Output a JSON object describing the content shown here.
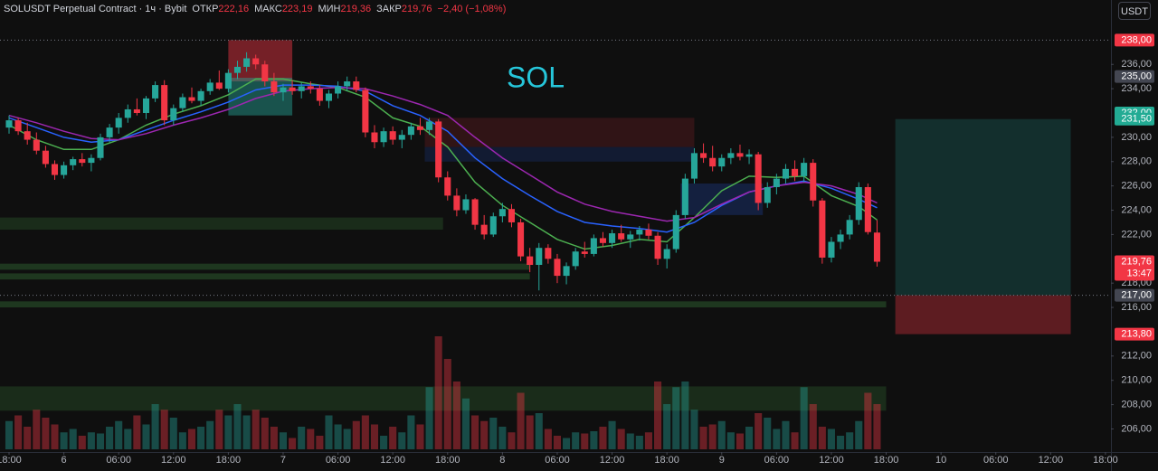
{
  "chart_data": {
    "type": "candlestick",
    "symbol": "SOLUSDT Perpetual Contract · 1ч · Bybit",
    "ohlc_fields": [
      {
        "label": "ОТКР",
        "value": "222,16"
      },
      {
        "label": "МАКС",
        "value": "223,19"
      },
      {
        "label": "МИН",
        "value": "219,36"
      },
      {
        "label": "ЗАКР",
        "value": "219,76"
      }
    ],
    "change": "−2,40 (−1,08%)",
    "currency": "USDT",
    "annotation": "SOL",
    "up_color": "#26a69a",
    "down_color": "#f23645",
    "xlim": [
      -0.99,
      120.6
    ],
    "ylim": [
      204.1,
      241.3
    ],
    "xticks": [
      {
        "value": 0,
        "label": "18:00"
      },
      6,
      {
        "value": 12,
        "label": "06:00"
      },
      {
        "value": 18,
        "label": "12:00"
      },
      {
        "value": 24,
        "label": "18:00"
      },
      {
        "value": 30,
        "label": "7"
      },
      {
        "value": 36,
        "label": "06:00"
      },
      {
        "value": 42,
        "label": "12:00"
      },
      {
        "value": 48,
        "label": "18:00"
      },
      {
        "value": 54,
        "label": "8"
      },
      {
        "value": 60,
        "label": "06:00"
      },
      {
        "value": 66,
        "label": "12:00"
      },
      {
        "value": 72,
        "label": "18:00"
      },
      {
        "value": 78,
        "label": "9"
      },
      {
        "value": 84,
        "label": "06:00"
      },
      {
        "value": 90,
        "label": "12:00"
      },
      {
        "value": 96,
        "label": "18:00"
      },
      {
        "value": 102,
        "label": "10"
      },
      {
        "value": 108,
        "label": "06:00"
      },
      {
        "value": 114,
        "label": "12:00"
      },
      {
        "value": 120,
        "label": "18:00"
      }
    ],
    "yticks": [
      {
        "value": 206,
        "label": "206,00"
      },
      {
        "value": 208,
        "label": "208,00"
      },
      {
        "value": 210,
        "label": "210,00"
      },
      {
        "value": 212,
        "label": "212,00"
      },
      {
        "value": 216,
        "label": "216,00"
      },
      {
        "value": 218,
        "label": "218,00"
      },
      {
        "value": 222,
        "label": "222,00"
      },
      {
        "value": 224,
        "label": "224,00"
      },
      {
        "value": 226,
        "label": "226,00"
      },
      {
        "value": 228,
        "label": "228,00"
      },
      {
        "value": 230,
        "label": "230,00"
      },
      {
        "value": 234,
        "label": "234,00"
      },
      {
        "value": 236,
        "label": "236,00"
      }
    ],
    "price_badges": [
      {
        "value": 238,
        "label": "238,00",
        "color": "#f23645"
      },
      {
        "value": 235,
        "label": "235,00",
        "color": "#434651"
      },
      {
        "value": 232,
        "label": "232,00",
        "color": "#22ab94"
      },
      {
        "value": 231.5,
        "label": "231,50",
        "color": "#22ab94"
      },
      {
        "value": 219.76,
        "label": "219,76",
        "sublabel": "13:47",
        "color": "#f23645"
      },
      {
        "value": 217,
        "label": "217,00",
        "color": "#434651"
      },
      {
        "value": 213.8,
        "label": "213,80",
        "color": "#f23645"
      }
    ],
    "dotted_lines": [
      238,
      217
    ],
    "x": [
      0,
      1,
      2,
      3,
      4,
      5,
      6,
      7,
      8,
      9,
      10,
      11,
      12,
      13,
      14,
      15,
      16,
      17,
      18,
      19,
      20,
      21,
      22,
      23,
      24,
      25,
      26,
      27,
      28,
      29,
      30,
      31,
      32,
      33,
      34,
      35,
      36,
      37,
      38,
      39,
      40,
      41,
      42,
      43,
      44,
      45,
      46,
      47,
      48,
      49,
      50,
      51,
      52,
      53,
      54,
      55,
      56,
      57,
      58,
      59,
      60,
      61,
      62,
      63,
      64,
      65,
      66,
      67,
      68,
      69,
      70,
      71,
      72,
      73,
      74,
      75,
      76,
      77,
      78,
      79,
      80,
      81,
      82,
      83,
      84,
      85,
      86,
      87,
      88,
      89,
      90,
      91,
      92,
      93,
      94,
      95
    ],
    "candles": [
      [
        230.8,
        231.8,
        230.3,
        231.4
      ],
      [
        231.4,
        231.6,
        230.2,
        230.5
      ],
      [
        230.5,
        231.2,
        229.4,
        229.8
      ],
      [
        229.8,
        230.4,
        228.6,
        228.9
      ],
      [
        228.9,
        229.3,
        227.5,
        227.8
      ],
      [
        227.8,
        228.1,
        226.5,
        226.9
      ],
      [
        226.9,
        228.0,
        226.6,
        227.7
      ],
      [
        227.7,
        228.4,
        227.3,
        228.2
      ],
      [
        228.2,
        228.7,
        227.6,
        227.9
      ],
      [
        227.9,
        228.6,
        227.2,
        228.3
      ],
      [
        228.3,
        230.3,
        228.1,
        230.0
      ],
      [
        230.0,
        231.1,
        229.6,
        230.8
      ],
      [
        230.8,
        232.0,
        230.3,
        231.6
      ],
      [
        231.6,
        232.7,
        231.2,
        232.3
      ],
      [
        232.3,
        233.2,
        231.8,
        232.0
      ],
      [
        232.0,
        233.4,
        231.5,
        233.2
      ],
      [
        233.2,
        234.6,
        232.9,
        234.3
      ],
      [
        234.3,
        234.7,
        231.0,
        231.4
      ],
      [
        231.4,
        232.7,
        231.0,
        232.4
      ],
      [
        232.4,
        233.6,
        232.1,
        233.3
      ],
      [
        233.3,
        234.1,
        232.8,
        233.0
      ],
      [
        233.0,
        234.0,
        232.6,
        233.8
      ],
      [
        233.8,
        234.8,
        233.5,
        234.5
      ],
      [
        234.5,
        235.5,
        233.9,
        234.0
      ],
      [
        234.0,
        235.6,
        233.7,
        235.3
      ],
      [
        235.3,
        236.3,
        234.8,
        235.8
      ],
      [
        235.8,
        237.0,
        235.4,
        236.5
      ],
      [
        236.5,
        236.8,
        235.6,
        236.0
      ],
      [
        236.0,
        236.3,
        234.2,
        234.6
      ],
      [
        234.6,
        235.3,
        233.4,
        233.7
      ],
      [
        233.7,
        234.4,
        233.0,
        234.1
      ],
      [
        234.1,
        234.7,
        233.5,
        233.8
      ],
      [
        233.8,
        234.5,
        233.2,
        234.2
      ],
      [
        234.2,
        234.6,
        233.6,
        234.0
      ],
      [
        234.0,
        234.3,
        232.6,
        233.0
      ],
      [
        233.0,
        233.9,
        232.4,
        233.6
      ],
      [
        233.6,
        234.6,
        233.2,
        234.2
      ],
      [
        234.2,
        235.0,
        233.8,
        234.6
      ],
      [
        234.6,
        235.0,
        233.7,
        233.9
      ],
      [
        233.9,
        234.1,
        230.0,
        230.4
      ],
      [
        230.4,
        231.0,
        229.1,
        229.6
      ],
      [
        229.6,
        230.8,
        229.2,
        230.5
      ],
      [
        230.5,
        230.9,
        229.4,
        229.8
      ],
      [
        229.8,
        230.6,
        229.1,
        230.2
      ],
      [
        230.2,
        231.2,
        229.8,
        230.9
      ],
      [
        230.9,
        231.6,
        230.2,
        230.6
      ],
      [
        230.6,
        231.6,
        230.2,
        231.3
      ],
      [
        231.3,
        231.5,
        226.3,
        226.7
      ],
      [
        226.7,
        227.2,
        224.8,
        225.2
      ],
      [
        225.2,
        225.8,
        223.5,
        224.0
      ],
      [
        224.0,
        225.3,
        223.7,
        224.9
      ],
      [
        224.9,
        225.0,
        222.4,
        222.8
      ],
      [
        222.8,
        223.6,
        221.6,
        222.0
      ],
      [
        222.0,
        223.8,
        221.8,
        223.5
      ],
      [
        223.5,
        224.6,
        223.0,
        224.1
      ],
      [
        224.1,
        224.5,
        222.6,
        223.0
      ],
      [
        223.0,
        223.3,
        219.8,
        220.2
      ],
      [
        220.2,
        220.9,
        218.9,
        219.5
      ],
      [
        219.5,
        221.3,
        217.4,
        220.9
      ],
      [
        220.9,
        221.2,
        219.6,
        220.0
      ],
      [
        220.0,
        220.4,
        218.0,
        218.6
      ],
      [
        218.6,
        219.7,
        217.9,
        219.4
      ],
      [
        219.4,
        220.9,
        219.1,
        220.6
      ],
      [
        220.6,
        221.4,
        220.1,
        220.4
      ],
      [
        220.4,
        222.0,
        220.2,
        221.7
      ],
      [
        221.7,
        222.2,
        221.0,
        221.3
      ],
      [
        221.3,
        222.4,
        220.9,
        222.1
      ],
      [
        222.1,
        222.8,
        221.4,
        221.6
      ],
      [
        221.6,
        222.3,
        220.9,
        222.0
      ],
      [
        222.0,
        222.7,
        221.5,
        222.4
      ],
      [
        222.4,
        222.9,
        221.6,
        221.9
      ],
      [
        221.9,
        222.2,
        219.5,
        220.0
      ],
      [
        220.0,
        221.2,
        219.2,
        220.8
      ],
      [
        220.8,
        224.0,
        220.5,
        223.6
      ],
      [
        223.6,
        227.0,
        223.3,
        226.6
      ],
      [
        226.6,
        229.1,
        226.2,
        228.7
      ],
      [
        228.7,
        229.5,
        227.9,
        228.3
      ],
      [
        228.3,
        229.3,
        227.2,
        227.6
      ],
      [
        227.6,
        228.6,
        227.2,
        228.3
      ],
      [
        228.3,
        229.1,
        227.8,
        228.7
      ],
      [
        228.7,
        229.4,
        228.1,
        228.4
      ],
      [
        228.4,
        229.0,
        227.8,
        228.6
      ],
      [
        228.6,
        228.8,
        224.0,
        224.6
      ],
      [
        224.6,
        226.3,
        224.2,
        225.9
      ],
      [
        225.9,
        227.0,
        225.3,
        226.6
      ],
      [
        226.6,
        227.8,
        226.2,
        227.4
      ],
      [
        227.4,
        228.1,
        226.4,
        226.8
      ],
      [
        226.8,
        228.3,
        226.3,
        227.9
      ],
      [
        227.9,
        228.2,
        224.3,
        224.8
      ],
      [
        224.8,
        225.0,
        219.6,
        220.1
      ],
      [
        220.1,
        221.8,
        219.7,
        221.4
      ],
      [
        221.4,
        222.4,
        220.8,
        222.0
      ],
      [
        222.0,
        223.6,
        221.6,
        223.2
      ],
      [
        223.2,
        226.3,
        222.8,
        225.9
      ],
      [
        225.9,
        226.2,
        222.0,
        222.2
      ],
      [
        222.16,
        223.19,
        219.36,
        219.76
      ]
    ],
    "volume": [
      25,
      30,
      20,
      35,
      28,
      22,
      15,
      18,
      12,
      15,
      14,
      20,
      25,
      18,
      30,
      22,
      40,
      35,
      28,
      15,
      18,
      20,
      25,
      35,
      30,
      40,
      30,
      35,
      28,
      20,
      15,
      10,
      20,
      18,
      12,
      30,
      22,
      18,
      25,
      30,
      22,
      12,
      20,
      15,
      30,
      22,
      55,
      100,
      80,
      60,
      45,
      30,
      25,
      28,
      20,
      15,
      50,
      30,
      32,
      18,
      12,
      10,
      15,
      14,
      16,
      20,
      25,
      18,
      14,
      12,
      15,
      60,
      40,
      55,
      60,
      35,
      20,
      22,
      25,
      15,
      14,
      20,
      32,
      28,
      18,
      25,
      15,
      55,
      40,
      20,
      18,
      12,
      15,
      25,
      50,
      40
    ],
    "volume_lim": [
      0,
      100
    ],
    "lines": [
      {
        "color": "#4caf50",
        "x": [
          0,
          3,
          6,
          9,
          12,
          15,
          18,
          21,
          24,
          27,
          30,
          33,
          36,
          39,
          42,
          45,
          48,
          51,
          54,
          57,
          60,
          63,
          66,
          69,
          72,
          75,
          78,
          81,
          84,
          87,
          90,
          93,
          95
        ],
        "values": [
          231.0,
          229.8,
          229.0,
          229.0,
          229.8,
          231.0,
          231.9,
          232.6,
          233.5,
          234.8,
          234.8,
          234.4,
          234.1,
          233.3,
          231.6,
          230.9,
          229.2,
          226.3,
          224.4,
          223.0,
          221.6,
          220.8,
          221.1,
          221.6,
          221.4,
          223.4,
          225.6,
          226.8,
          226.7,
          226.8,
          225.2,
          224.3,
          223.2
        ]
      },
      {
        "color": "#2962ff",
        "x": [
          0,
          3,
          6,
          9,
          12,
          15,
          18,
          21,
          24,
          27,
          30,
          33,
          36,
          39,
          42,
          45,
          48,
          51,
          54,
          57,
          60,
          63,
          66,
          69,
          72,
          75,
          78,
          81,
          84,
          87,
          90,
          93,
          95
        ],
        "values": [
          231.6,
          230.8,
          230.0,
          229.6,
          229.8,
          230.6,
          231.4,
          232.1,
          232.9,
          233.9,
          234.3,
          234.3,
          234.2,
          233.8,
          232.6,
          231.8,
          230.5,
          228.3,
          226.6,
          225.2,
          223.9,
          223.0,
          222.7,
          222.5,
          222.2,
          223.0,
          224.4,
          225.5,
          226.0,
          226.4,
          225.8,
          224.9,
          224.2
        ]
      },
      {
        "color": "#9c27b0",
        "x": [
          0,
          3,
          6,
          9,
          12,
          15,
          18,
          21,
          24,
          27,
          30,
          33,
          36,
          39,
          42,
          45,
          48,
          51,
          54,
          57,
          60,
          63,
          66,
          69,
          72,
          75,
          78,
          81,
          84,
          87,
          90,
          93,
          95
        ],
        "values": [
          231.8,
          231.2,
          230.5,
          229.9,
          229.8,
          230.3,
          231.0,
          231.6,
          232.3,
          233.2,
          233.8,
          234.0,
          234.1,
          234.0,
          233.4,
          232.7,
          231.8,
          230.0,
          228.3,
          226.9,
          225.5,
          224.5,
          223.9,
          223.5,
          223.1,
          223.4,
          224.5,
          225.5,
          226.0,
          226.3,
          226.0,
          225.3,
          224.6
        ]
      }
    ],
    "zones": [
      {
        "h0": -1,
        "h1": 47.5,
        "p0": 223.4,
        "p1": 222.4,
        "color": "rgba(76,175,80,0.18)"
      },
      {
        "h0": -1,
        "h1": 57,
        "p0": 219.6,
        "p1": 219.1,
        "color": "rgba(76,175,80,0.25)"
      },
      {
        "h0": -1,
        "h1": 57,
        "p0": 218.8,
        "p1": 218.3,
        "color": "rgba(76,175,80,0.25)"
      },
      {
        "h0": -1,
        "h1": 96,
        "p0": 216.5,
        "p1": 216.0,
        "color": "rgba(76,175,80,0.25)"
      },
      {
        "h0": -1,
        "h1": 96,
        "p0": 209.5,
        "p1": 207.5,
        "color": "rgba(76,175,80,0.18)"
      },
      {
        "h0": 24,
        "h1": 31,
        "p0": 238.0,
        "p1": 234.6,
        "color": "rgba(242,54,69,0.45)"
      },
      {
        "h0": 24,
        "h1": 31,
        "p0": 234.9,
        "p1": 231.8,
        "color": "rgba(38,166,154,0.45)"
      },
      {
        "h0": 45.5,
        "h1": 75,
        "p0": 231.6,
        "p1": 229.2,
        "color": "rgba(242,54,69,0.15)"
      },
      {
        "h0": 45.5,
        "h1": 75,
        "p0": 229.2,
        "p1": 228.0,
        "color": "rgba(41,98,255,0.15)"
      },
      {
        "h0": 73.5,
        "h1": 82.5,
        "p0": 226.2,
        "p1": 223.6,
        "color": "rgba(41,98,255,0.2)"
      },
      {
        "h0": 97,
        "h1": 116.2,
        "p0": 231.5,
        "p1": 217.0,
        "color": "rgba(38,166,154,0.22)"
      },
      {
        "h0": 97,
        "h1": 116.2,
        "p0": 217.0,
        "p1": 213.8,
        "color": "rgba(242,54,69,0.35)"
      }
    ]
  }
}
